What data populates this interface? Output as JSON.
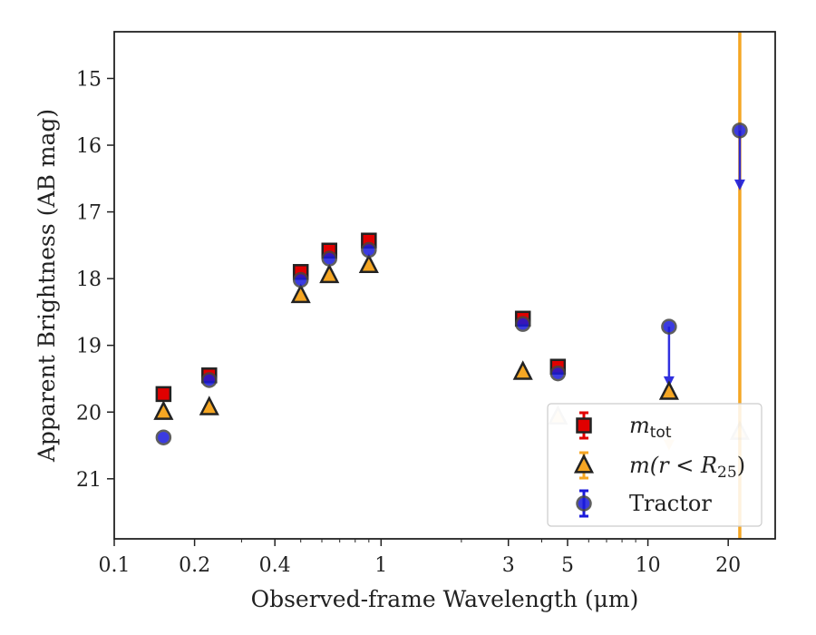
{
  "chart_data": {
    "type": "scatter",
    "title": "",
    "xlabel": "Observed-frame Wavelength (μm)",
    "ylabel": "Apparent Brightness (AB mag)",
    "x_scale": "log",
    "xlim": [
      0.1,
      30
    ],
    "ylim": [
      21.9,
      14.3
    ],
    "y_inverted": true,
    "grid": false,
    "legend_position": "lower right",
    "x_ticks": [
      {
        "value": 0.1,
        "label": "0.1"
      },
      {
        "value": 0.2,
        "label": "0.2"
      },
      {
        "value": 0.4,
        "label": "0.4"
      },
      {
        "value": 1,
        "label": "1"
      },
      {
        "value": 3,
        "label": "3"
      },
      {
        "value": 5,
        "label": "5"
      },
      {
        "value": 10,
        "label": "10"
      },
      {
        "value": 20,
        "label": "20"
      }
    ],
    "y_ticks": [
      {
        "value": 15,
        "label": "15"
      },
      {
        "value": 16,
        "label": "16"
      },
      {
        "value": 17,
        "label": "17"
      },
      {
        "value": 18,
        "label": "18"
      },
      {
        "value": 19,
        "label": "19"
      },
      {
        "value": 20,
        "label": "20"
      },
      {
        "value": 21,
        "label": "21"
      }
    ],
    "vertical_line": {
      "x": 22.1,
      "color": "#f5a623"
    },
    "series": [
      {
        "name": "m_tot",
        "legend_label": "m",
        "legend_sub": "tot",
        "marker": "square",
        "color": "#e00000",
        "edge": "#222222",
        "points": [
          {
            "x": 0.153,
            "y": 19.73
          },
          {
            "x": 0.227,
            "y": 19.45
          },
          {
            "x": 0.5,
            "y": 17.9
          },
          {
            "x": 0.64,
            "y": 17.58
          },
          {
            "x": 0.9,
            "y": 17.43
          },
          {
            "x": 3.4,
            "y": 18.6
          },
          {
            "x": 4.6,
            "y": 19.32
          }
        ]
      },
      {
        "name": "m(r < R25)",
        "legend_label": "m",
        "legend_rest": "(r < R",
        "legend_sub": "25",
        "legend_close": ")",
        "marker": "triangle",
        "color": "#f5a623",
        "edge": "#222222",
        "points": [
          {
            "x": 0.153,
            "y": 20.0
          },
          {
            "x": 0.227,
            "y": 19.93
          },
          {
            "x": 0.5,
            "y": 18.25
          },
          {
            "x": 0.64,
            "y": 17.95
          },
          {
            "x": 0.9,
            "y": 17.8
          },
          {
            "x": 3.4,
            "y": 19.4
          },
          {
            "x": 4.6,
            "y": 20.07,
            "faded": true
          },
          {
            "x": 12.0,
            "y": 19.7,
            "upper_limit_from": 18.72
          },
          {
            "x": 22.1,
            "y": 20.3,
            "faded": true
          }
        ],
        "upper_limits": [
          {
            "x": 12.0,
            "y": 20.55,
            "faded": true
          }
        ]
      },
      {
        "name": "Tractor",
        "legend_label": "Tractor",
        "marker": "circle",
        "color": "#1a1adb",
        "edge": "#444444",
        "points": [
          {
            "x": 0.153,
            "y": 20.38
          },
          {
            "x": 0.227,
            "y": 19.52
          },
          {
            "x": 0.5,
            "y": 18.02
          },
          {
            "x": 0.64,
            "y": 17.7
          },
          {
            "x": 0.9,
            "y": 17.57
          },
          {
            "x": 3.4,
            "y": 18.68
          },
          {
            "x": 4.6,
            "y": 19.42
          },
          {
            "x": 12.0,
            "y": 18.72
          },
          {
            "x": 22.1,
            "y": 15.78
          }
        ],
        "upper_limits": [
          {
            "x": 12.0,
            "y_from": 18.72,
            "y_to": 19.6
          },
          {
            "x": 22.1,
            "y_from": 15.78,
            "y_to": 16.65
          }
        ]
      }
    ]
  }
}
